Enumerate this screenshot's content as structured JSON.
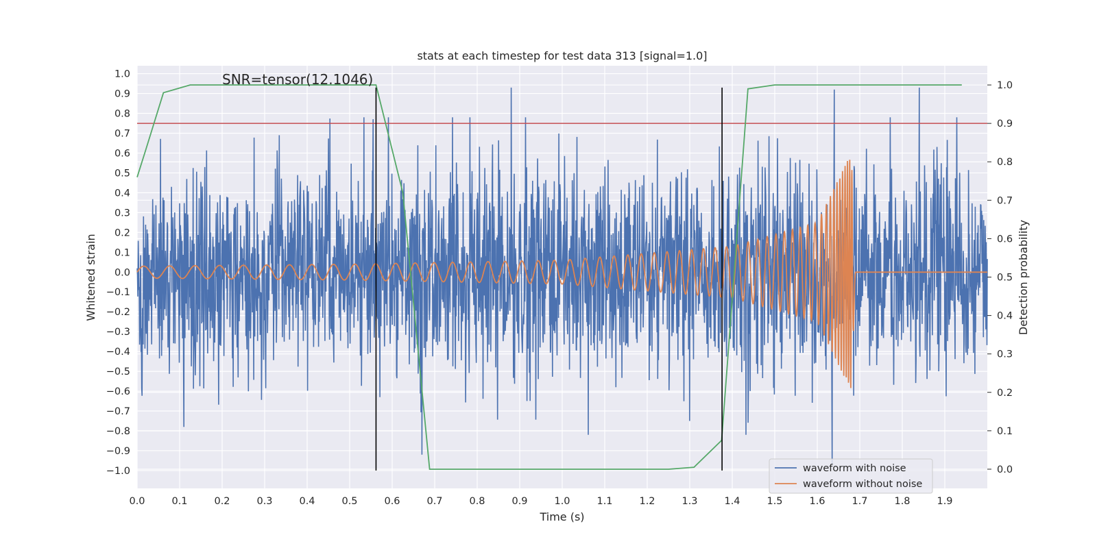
{
  "chart_data": {
    "type": "line",
    "title": "stats at each timestep for test data 313 [signal=1.0]",
    "xlabel": "Time (s)",
    "ylabel": "Whitened strain",
    "y2label": "Detection probability",
    "xlim": [
      0.0,
      2.0
    ],
    "ylim": [
      -1.09,
      1.04
    ],
    "y2lim": [
      -0.05,
      1.05
    ],
    "xticks": [
      "0.0",
      "0.1",
      "0.2",
      "0.3",
      "0.4",
      "0.5",
      "0.6",
      "0.7",
      "0.8",
      "0.9",
      "1.0",
      "1.1",
      "1.2",
      "1.3",
      "1.4",
      "1.5",
      "1.6",
      "1.7",
      "1.8",
      "1.9"
    ],
    "yticks": [
      "1.0",
      "0.9",
      "0.8",
      "0.7",
      "0.6",
      "0.5",
      "0.4",
      "0.3",
      "0.2",
      "0.1",
      "0.0",
      "−0.1",
      "−0.2",
      "−0.3",
      "−0.4",
      "−0.5",
      "−0.6",
      "−0.7",
      "−0.8",
      "−0.9",
      "−1.0"
    ],
    "y2ticks": [
      "1.0",
      "0.9",
      "0.8",
      "0.7",
      "0.6",
      "0.5",
      "0.4",
      "0.3",
      "0.2",
      "0.1",
      "0.0"
    ],
    "grid": true,
    "legend_position": "lower-right",
    "annotation": "SNR=tensor(12.1046)",
    "series": [
      {
        "name": "waveform with noise",
        "color": "#4c72b0",
        "description_type": "noisy time series, approx. 4096 Hz sampling, amplitude mostly within ±0.5 with spikes to ±0.9",
        "peaks": [
          {
            "x": 0.88,
            "y": 0.93
          },
          {
            "x": 1.64,
            "y": 0.92
          },
          {
            "x": 1.84,
            "y": 0.93
          },
          {
            "x": 1.635,
            "y": -0.97
          },
          {
            "x": 0.67,
            "y": -0.92
          },
          {
            "x": 0.11,
            "y": -0.78
          }
        ]
      },
      {
        "name": "waveform without noise",
        "color": "#dd8452",
        "description_type": "chirp that rises in amplitude and frequency, merging near t=1.69 s then flat",
        "points": [
          {
            "x": 0.0,
            "amp": 0.03,
            "freq_hz": 16
          },
          {
            "x": 0.5,
            "amp": 0.04,
            "freq_hz": 20
          },
          {
            "x": 1.0,
            "amp": 0.06,
            "freq_hz": 27
          },
          {
            "x": 1.4,
            "amp": 0.13,
            "freq_hz": 38
          },
          {
            "x": 1.6,
            "amp": 0.25,
            "freq_hz": 60
          },
          {
            "x": 1.68,
            "amp": 0.6,
            "freq_hz": 200
          },
          {
            "x": 1.69,
            "amp": 0.0,
            "freq_hz": 0
          }
        ],
        "merger_time": 1.69,
        "baseline": 0.0
      },
      {
        "name": "detection probability",
        "color": "#55a868",
        "axis": "right",
        "x": [
          0.0,
          0.02,
          0.062,
          0.125,
          0.5,
          0.562,
          0.625,
          0.688,
          0.75,
          1.25,
          1.31,
          1.375,
          1.437,
          1.5,
          1.94
        ],
        "y": [
          0.76,
          0.83,
          0.98,
          1.0,
          1.0,
          1.0,
          0.72,
          0.0,
          0.0,
          0.0,
          0.005,
          0.075,
          0.99,
          1.0,
          1.0
        ]
      }
    ],
    "hlines": [
      {
        "axis": "right",
        "y": 0.9,
        "color": "#c44e52"
      }
    ],
    "vlines": [
      {
        "x": 0.562,
        "color": "#000000",
        "y_from": -1.0,
        "y_to": 0.93
      },
      {
        "x": 1.376,
        "color": "#000000",
        "y_from": -1.0,
        "y_to": 0.93
      }
    ]
  }
}
